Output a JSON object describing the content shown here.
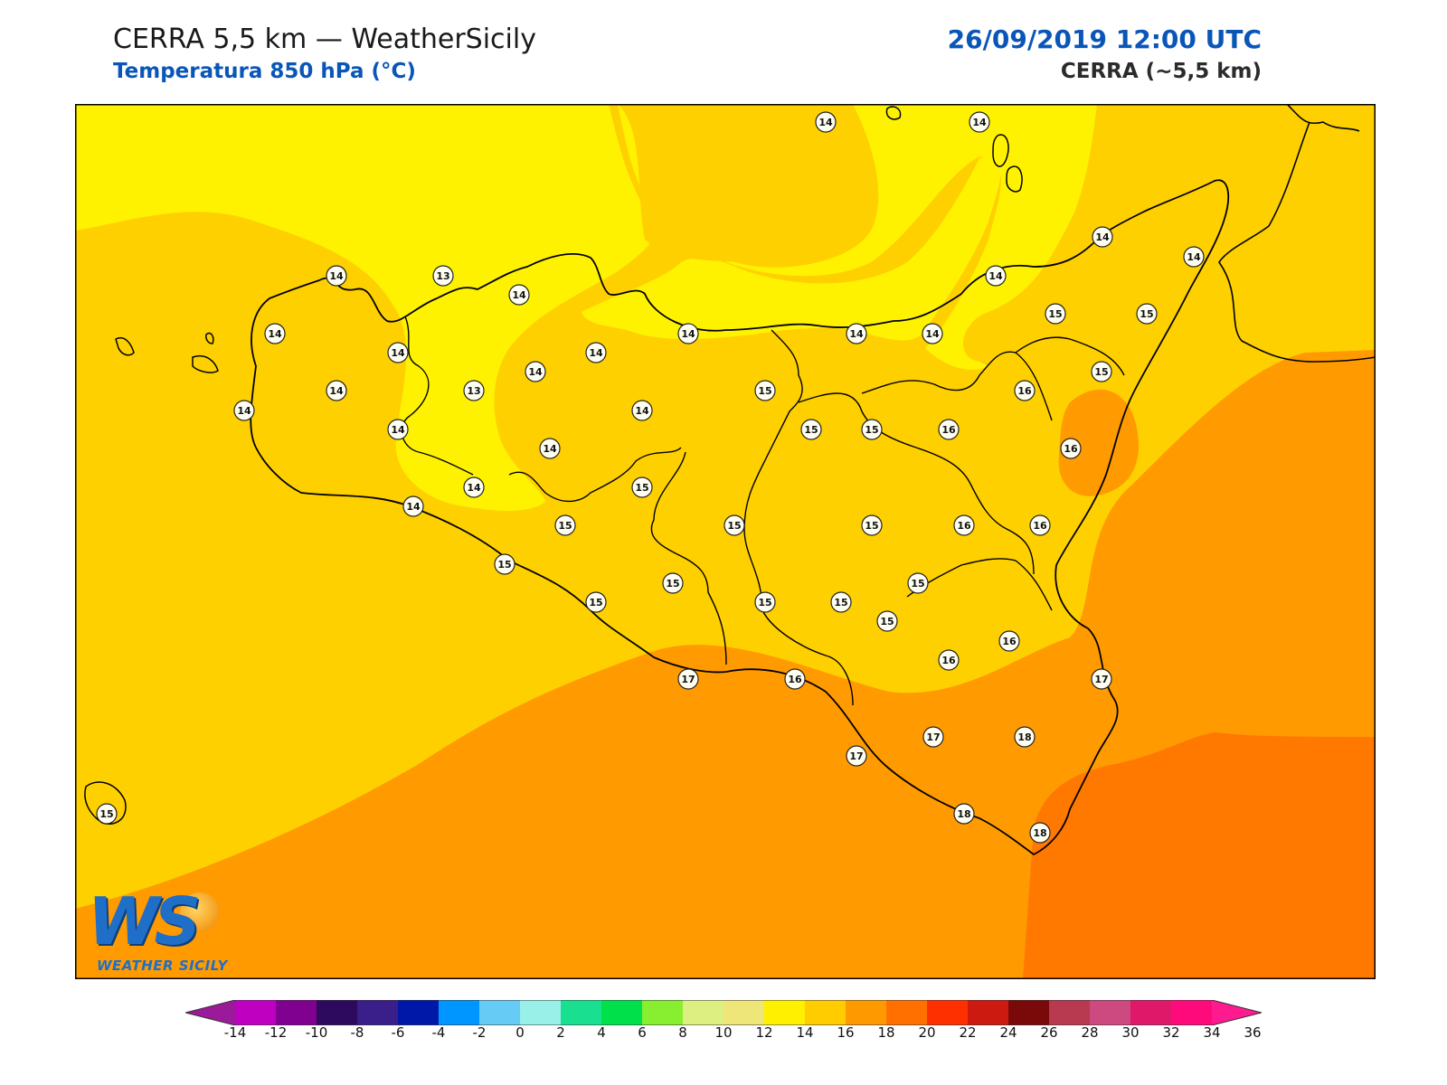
{
  "header": {
    "title": "CERRA 5,5 km — WeatherSicily",
    "subtitle": "Temperatura 850 hPa (°C)",
    "datetime": "26/09/2019 12:00 UTC",
    "model": "CERRA (~5,5 km)"
  },
  "logo": {
    "text": "WEATHER SICILY"
  },
  "colorbar": {
    "ticks": [
      "-14",
      "-12",
      "-10",
      "-8",
      "-6",
      "-4",
      "-2",
      "0",
      "2",
      "4",
      "6",
      "8",
      "10",
      "12",
      "14",
      "16",
      "18",
      "20",
      "22",
      "24",
      "26",
      "28",
      "30",
      "32",
      "34",
      "36"
    ],
    "colors": [
      "#c000c0",
      "#800090",
      "#2e0a5e",
      "#3a1f8a",
      "#0018a8",
      "#0096ff",
      "#66ccf5",
      "#99f0e8",
      "#18e090",
      "#00e04a",
      "#88ee30",
      "#dcef80",
      "#efe67a",
      "#fff000",
      "#ffcc00",
      "#ff9900",
      "#ff7000",
      "#ff3000",
      "#cc1a10",
      "#7a0a0a",
      "#b83a50",
      "#cc4a80",
      "#e0186a",
      "#ff0a7a"
    ],
    "under_color": "#9a1a9a",
    "over_color": "#ff1a90"
  },
  "field_colors": {
    "t13": "#fff200",
    "t14": "#ffd000",
    "t16": "#ff9a00",
    "t18": "#ff7800"
  },
  "stations": [
    {
      "v": "14"
    },
    {
      "v": "14"
    },
    {
      "v": "14"
    },
    {
      "v": "13"
    },
    {
      "v": "14"
    },
    {
      "v": "14"
    },
    {
      "v": "14"
    },
    {
      "v": "14"
    },
    {
      "v": "14"
    },
    {
      "v": "14"
    },
    {
      "v": "14"
    },
    {
      "v": "14"
    },
    {
      "v": "15"
    },
    {
      "v": "15"
    },
    {
      "v": "14"
    },
    {
      "v": "13"
    },
    {
      "v": "14"
    },
    {
      "v": "14"
    },
    {
      "v": "14"
    },
    {
      "v": "14"
    },
    {
      "v": "15"
    },
    {
      "v": "14"
    },
    {
      "v": "14"
    },
    {
      "v": "15"
    },
    {
      "v": "15"
    },
    {
      "v": "15"
    },
    {
      "v": "16"
    },
    {
      "v": "16"
    },
    {
      "v": "16"
    },
    {
      "v": "14"
    },
    {
      "v": "14"
    },
    {
      "v": "15"
    },
    {
      "v": "15"
    },
    {
      "v": "15"
    },
    {
      "v": "15"
    },
    {
      "v": "16"
    },
    {
      "v": "16"
    },
    {
      "v": "14"
    },
    {
      "v": "15"
    },
    {
      "v": "15"
    },
    {
      "v": "15"
    },
    {
      "v": "15"
    },
    {
      "v": "15"
    },
    {
      "v": "15"
    },
    {
      "v": "16"
    },
    {
      "v": "17"
    },
    {
      "v": "16"
    },
    {
      "v": "15"
    },
    {
      "v": "16"
    },
    {
      "v": "17"
    },
    {
      "v": "17"
    },
    {
      "v": "18"
    },
    {
      "v": "17"
    },
    {
      "v": "18"
    },
    {
      "v": "18"
    },
    {
      "v": "15"
    }
  ]
}
